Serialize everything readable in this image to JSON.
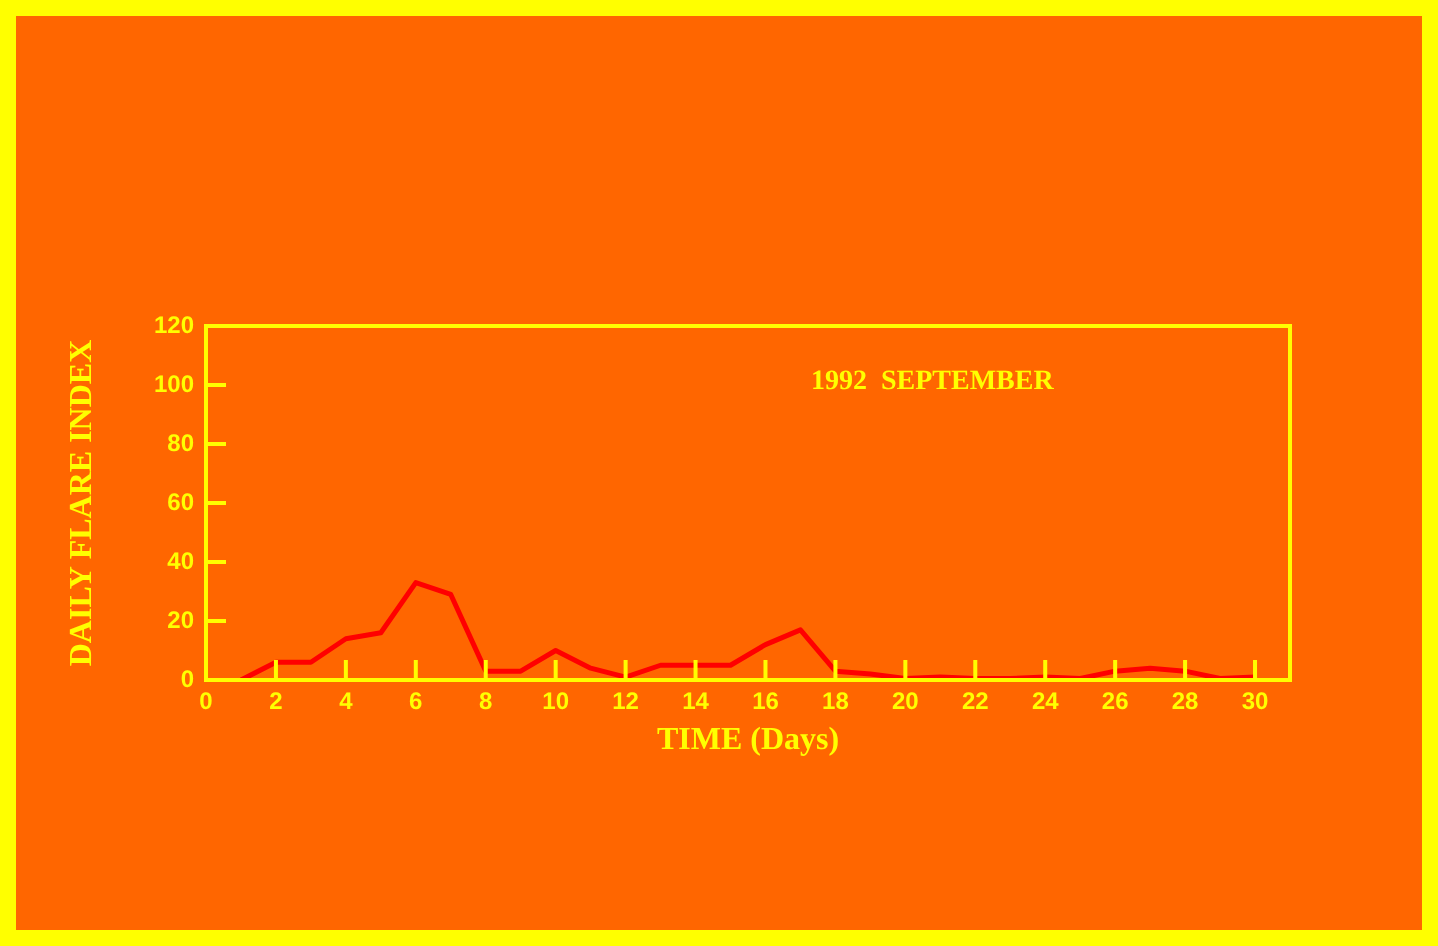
{
  "chart_data": {
    "type": "line",
    "xlabel": "TIME (Days)",
    "ylabel": "DAILY FLARE INDEX",
    "annotations": [
      "1992  SEPTEMBER"
    ],
    "x": [
      1,
      2,
      3,
      4,
      5,
      6,
      7,
      8,
      9,
      10,
      11,
      12,
      13,
      14,
      15,
      16,
      17,
      18,
      19,
      20,
      21,
      22,
      23,
      24,
      25,
      26,
      27,
      28,
      29,
      30
    ],
    "series": [
      {
        "color": "#ff0000",
        "values": [
          0,
          6,
          6,
          14,
          16,
          33,
          29,
          3,
          3,
          10,
          4,
          1,
          5,
          5,
          5,
          12,
          17,
          3,
          2,
          0.5,
          1,
          0.5,
          0.5,
          1,
          0.5,
          3,
          4,
          3,
          0.5,
          1
        ]
      }
    ],
    "xlim": [
      0,
      31
    ],
    "xticks": [
      0,
      2,
      4,
      6,
      8,
      10,
      12,
      14,
      16,
      18,
      20,
      22,
      24,
      26,
      28,
      30
    ],
    "ylim": [
      0,
      120
    ],
    "yticks": [
      0,
      20,
      40,
      60,
      80,
      100,
      120
    ],
    "marker": "none",
    "line_style": "solid",
    "legend": false,
    "grid": false
  }
}
